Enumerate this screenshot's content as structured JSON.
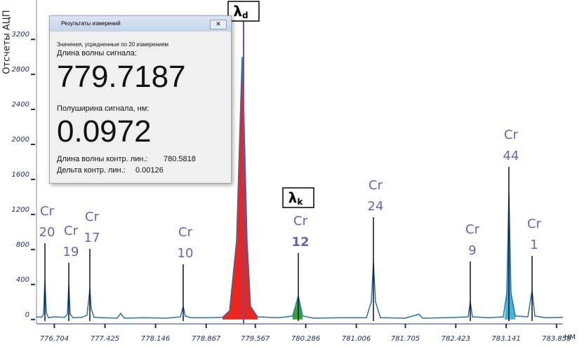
{
  "chart_data": {
    "type": "line",
    "y_label": "Отсчеты АЦП",
    "x_unit": "НМ",
    "xlim": [
      776.45,
      783.95
    ],
    "ylim": [
      -50,
      3650
    ],
    "xticks": [
      776.704,
      777.425,
      778.146,
      778.867,
      779.567,
      780.286,
      781.006,
      781.705,
      782.423,
      783.141,
      783.858
    ],
    "yticks": [
      0,
      400,
      800,
      1200,
      1600,
      2000,
      2400,
      2800,
      3200
    ],
    "series": [
      {
        "kind": "area",
        "color": "#e8281e",
        "x": [
          779.1,
          779.2,
          779.3,
          779.36,
          779.38,
          779.4,
          779.45,
          779.5,
          779.6
        ],
        "values": [
          25,
          100,
          900,
          2500,
          3000,
          2500,
          900,
          150,
          30
        ]
      },
      {
        "kind": "area",
        "color": "#2fa53a",
        "x": [
          780.1,
          780.15,
          780.18,
          780.21,
          780.24
        ],
        "values": [
          40,
          150,
          270,
          150,
          40
        ]
      },
      {
        "kind": "area",
        "color": "#45b4dc",
        "x": [
          783.12,
          783.15,
          783.18,
          783.21,
          783.27
        ],
        "values": [
          30,
          300,
          1450,
          300,
          40
        ]
      },
      {
        "kind": "line",
        "color": "#2a6fb0",
        "x": [
          776.45,
          776.52,
          776.55,
          776.57,
          776.59,
          776.62,
          776.7,
          776.85,
          776.89,
          776.91,
          776.93,
          776.97,
          777.1,
          777.17,
          777.21,
          777.23,
          777.27,
          777.4,
          777.6,
          777.65,
          777.7,
          778.0,
          778.3,
          778.5,
          778.54,
          778.57,
          778.65,
          778.9,
          779.1,
          779.2,
          779.3,
          779.36,
          779.38,
          779.4,
          779.45,
          779.5,
          779.6,
          779.9,
          780.1,
          780.18,
          780.24,
          780.4,
          780.8,
          781.15,
          781.22,
          781.25,
          781.28,
          781.35,
          781.7,
          781.9,
          781.95,
          782.3,
          782.6,
          782.63,
          782.66,
          782.9,
          783.1,
          783.15,
          783.18,
          783.21,
          783.27,
          783.45,
          783.51,
          783.55,
          783.7,
          783.95
        ],
        "values": [
          30,
          25,
          60,
          440,
          80,
          20,
          30,
          25,
          60,
          400,
          60,
          20,
          25,
          50,
          350,
          120,
          25,
          20,
          15,
          70,
          15,
          20,
          15,
          30,
          150,
          40,
          20,
          20,
          25,
          100,
          900,
          2500,
          3000,
          2500,
          900,
          150,
          30,
          20,
          40,
          270,
          40,
          15,
          20,
          20,
          200,
          650,
          200,
          20,
          15,
          60,
          15,
          20,
          30,
          200,
          30,
          20,
          30,
          300,
          1450,
          300,
          40,
          30,
          330,
          40,
          20,
          25
        ]
      }
    ],
    "annotations": [
      {
        "x": 776.57,
        "texts": [
          "Cr",
          "20"
        ]
      },
      {
        "x": 776.91,
        "texts": [
          "Cr",
          "19"
        ]
      },
      {
        "x": 777.21,
        "texts": [
          "Cr",
          "17"
        ]
      },
      {
        "x": 778.54,
        "texts": [
          "Cr",
          "10"
        ]
      },
      {
        "x": 780.18,
        "texts": [
          "Cr",
          "12"
        ]
      },
      {
        "x": 781.25,
        "texts": [
          "Cr",
          "24"
        ]
      },
      {
        "x": 782.63,
        "texts": [
          "Cr",
          "9"
        ]
      },
      {
        "x": 783.18,
        "texts": [
          "Cr",
          "44"
        ]
      },
      {
        "x": 783.51,
        "texts": [
          "Cr",
          "1"
        ]
      }
    ],
    "markers": [
      {
        "x": 779.4,
        "symbol": "λ",
        "sub": "d"
      },
      {
        "x": 780.18,
        "symbol": "λ",
        "sub": "k"
      }
    ]
  },
  "dialog": {
    "title": "Результаты измерений",
    "note": "Значения, усредненные по 20 измерениям",
    "wavelength_label": "Длина волны сигнала:",
    "wavelength": "779.7187",
    "halfwidth_label": "Полуширина сигнала, нм:",
    "halfwidth": "0.0972",
    "ref_label": "Длина волны контр. лин.:",
    "ref_value": "780.5818",
    "delta_label": "Дельта контр. лин.:",
    "delta_value": "0.00126"
  }
}
